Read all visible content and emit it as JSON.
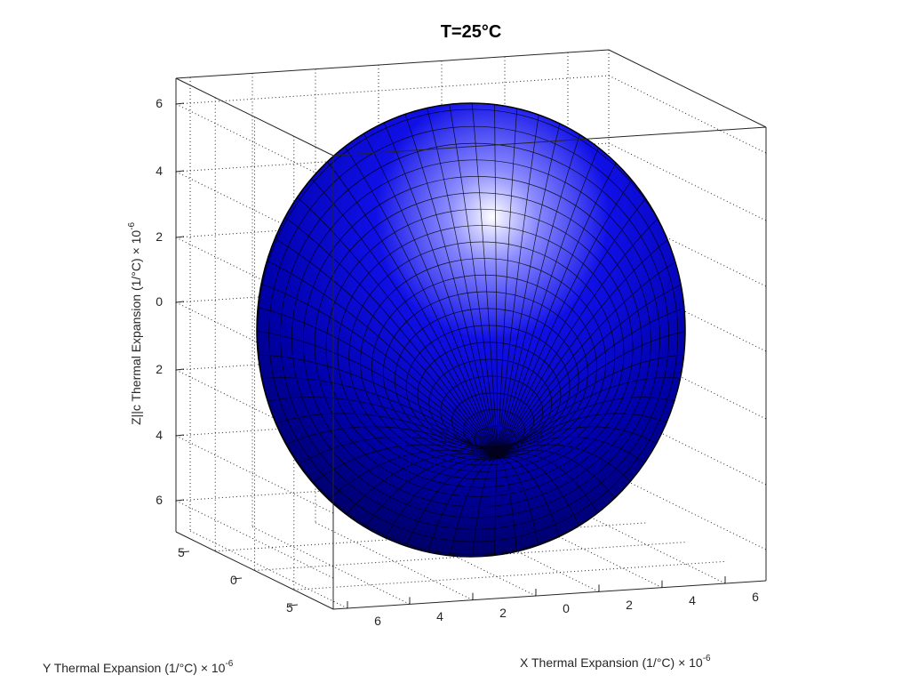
{
  "chart_data": {
    "type": "surface",
    "title": "T=25°C",
    "surface": "ellipsoid",
    "surface_color": "#0000ff",
    "edge_color": "#000000",
    "xlabel": "X Thermal Expansion (1/°C) × 10",
    "xlabel_exp": "-6",
    "ylabel": "Y Thermal Expansion (1/°C) × 10",
    "ylabel_exp": "-6",
    "zlabel": "Z||c Thermal Expansion (1/°C) × 10",
    "zlabel_exp": "-6",
    "x_ticks": [
      "6",
      "4",
      "2",
      "0",
      "2",
      "4",
      "6"
    ],
    "y_ticks": [
      "5",
      "0",
      "5"
    ],
    "z_ticks": [
      "6",
      "4",
      "2",
      "0",
      "2",
      "4",
      "6"
    ],
    "xlim": [
      -7,
      7
    ],
    "ylim": [
      -7,
      7
    ],
    "zlim": [
      -7,
      7
    ],
    "grid": true,
    "box": true
  }
}
